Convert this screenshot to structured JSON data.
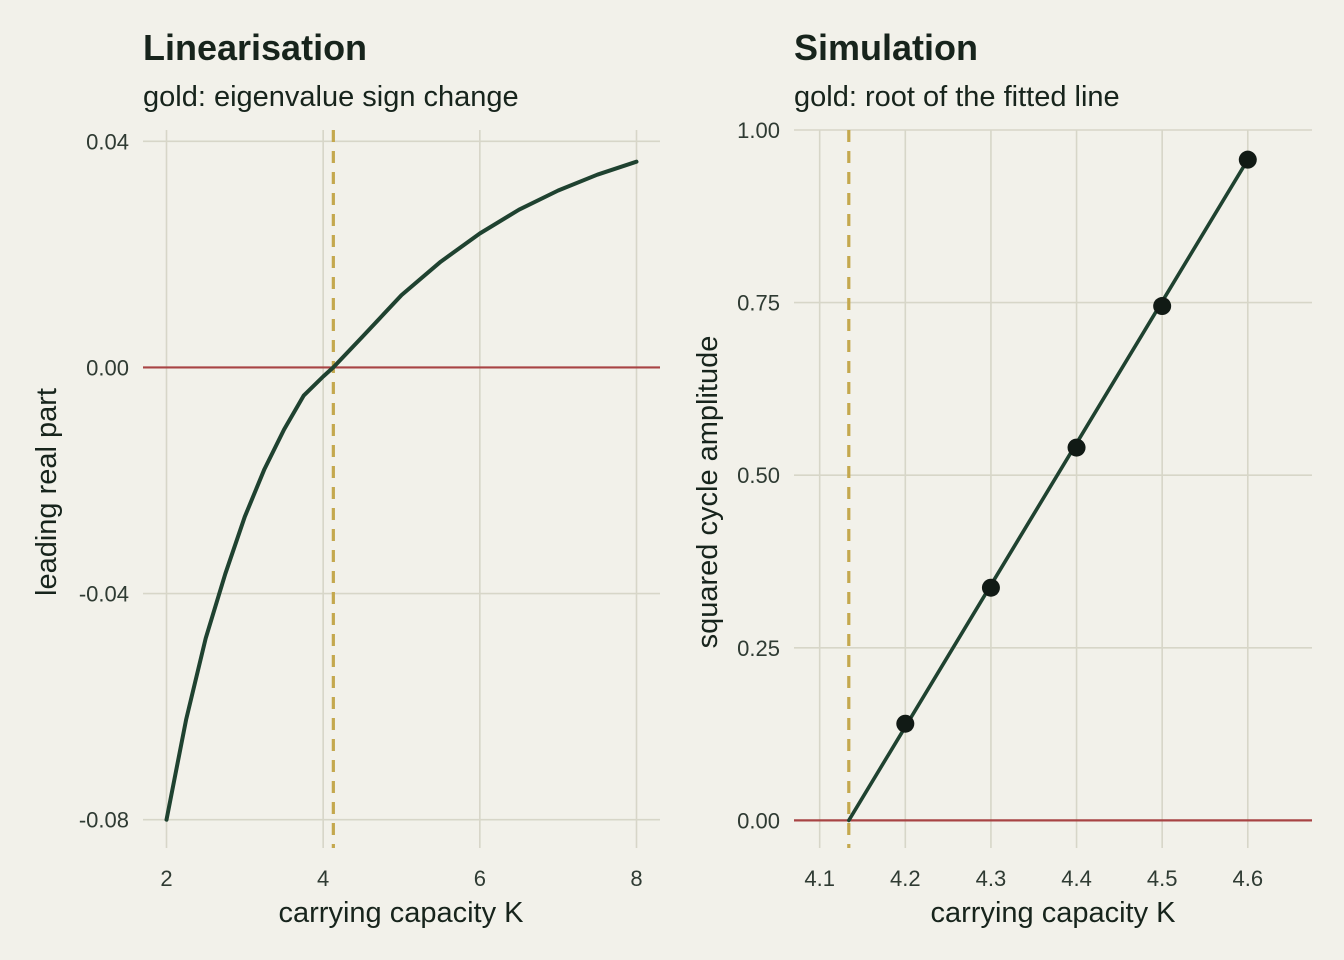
{
  "colors": {
    "background": "#f2f1ea",
    "grid": "#d7d6c8",
    "curve": "#1f4230",
    "zero_line": "#a84444",
    "threshold": "#c4a84e",
    "points": "#111a15",
    "text": "#17241c"
  },
  "chart_data": [
    {
      "type": "line",
      "title": "Linearisation",
      "subtitle": "gold: eigenvalue sign change",
      "xlabel": "carrying capacity K",
      "ylabel": "leading real part",
      "xlim": [
        1.7,
        8.3
      ],
      "ylim": [
        -0.085,
        0.042
      ],
      "x_ticks": [
        2,
        4,
        6,
        8
      ],
      "x_tick_labels": [
        "2",
        "4",
        "6",
        "8"
      ],
      "y_ticks": [
        -0.08,
        -0.04,
        0.0,
        0.04
      ],
      "y_tick_labels": [
        "-0.08",
        "-0.04",
        "0.00",
        "0.04"
      ],
      "grid": true,
      "zero_line": 0.0,
      "threshold_x": 4.13,
      "series": [
        {
          "x": [
            2.0,
            2.25,
            2.5,
            2.75,
            3.0,
            3.25,
            3.5,
            3.75,
            4.0,
            4.13,
            4.5,
            5.0,
            5.5,
            6.0,
            6.5,
            7.0,
            7.5,
            8.0
          ],
          "values": [
            -0.08,
            -0.0623,
            -0.0479,
            -0.0365,
            -0.0264,
            -0.018,
            -0.011,
            -0.005,
            -0.0016,
            0.0,
            0.0054,
            0.0128,
            0.0187,
            0.0237,
            0.0279,
            0.0313,
            0.0341,
            0.0364
          ]
        }
      ]
    },
    {
      "type": "scatter",
      "title": "Simulation",
      "subtitle": "gold: root of the fitted line",
      "xlabel": "carrying capacity K",
      "ylabel": "squared cycle amplitude",
      "xlim": [
        4.07,
        4.675
      ],
      "ylim": [
        -0.04,
        1.0
      ],
      "x_ticks": [
        4.1,
        4.2,
        4.3,
        4.4,
        4.5,
        4.6
      ],
      "x_tick_labels": [
        "4.1",
        "4.2",
        "4.3",
        "4.4",
        "4.5",
        "4.6"
      ],
      "y_ticks": [
        0.0,
        0.25,
        0.5,
        0.75,
        1.0
      ],
      "y_tick_labels": [
        "0.00",
        "0.25",
        "0.50",
        "0.75",
        "1.00"
      ],
      "grid": true,
      "zero_line": 0.0,
      "threshold_x": 4.134,
      "points": {
        "x": [
          4.2,
          4.3,
          4.4,
          4.5,
          4.6
        ],
        "values": [
          0.14,
          0.337,
          0.54,
          0.745,
          0.957
        ]
      },
      "fitted_line": {
        "x": [
          4.134,
          4.6
        ],
        "values": [
          0.0,
          0.957
        ]
      }
    }
  ]
}
